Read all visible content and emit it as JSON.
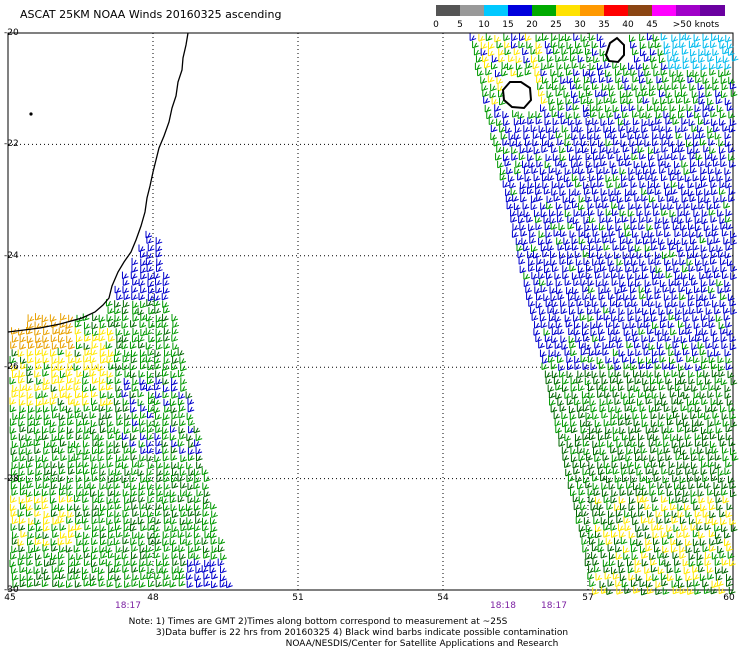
{
  "title": "ASCAT 25KM NOAA Winds 20160325 ascending",
  "legend": {
    "colors": [
      "#555555",
      "#999999",
      "#00c8ff",
      "#0000dd",
      "#00aa00",
      "#ffe200",
      "#ff9900",
      "#ff0000",
      "#8b4513",
      "#ff00ff",
      "#a000c8",
      "#6a00a0"
    ],
    "labels": [
      "0",
      "5",
      "10",
      "15",
      "20",
      "25",
      "30",
      "35",
      "40",
      "45",
      ">50 knots"
    ]
  },
  "axes": {
    "lon_labels": [
      "45",
      "48",
      "51",
      "54",
      "57",
      "60"
    ],
    "lat_labels": [
      "-20",
      "-22",
      "-24",
      "-26",
      "-28",
      "-30"
    ]
  },
  "times": [
    "18:17",
    "18:18",
    "18:17"
  ],
  "notes": [
    "Note: 1) Times are GMT 2)Times along bottom correspond to measurement at ~25S",
    "3)Data buffer is 22 hrs from 20160325 4) Black wind barbs indicate possible contamination",
    "NOAA/NESDIS/Center for Satellite Applications and Research"
  ],
  "colors": {
    "green": "#009900",
    "dark_green": "#006600",
    "blue": "#0000cc",
    "yellow": "#ffe800",
    "orange": "#e8a000",
    "cyan": "#00bbee",
    "coast": "#000000"
  }
}
